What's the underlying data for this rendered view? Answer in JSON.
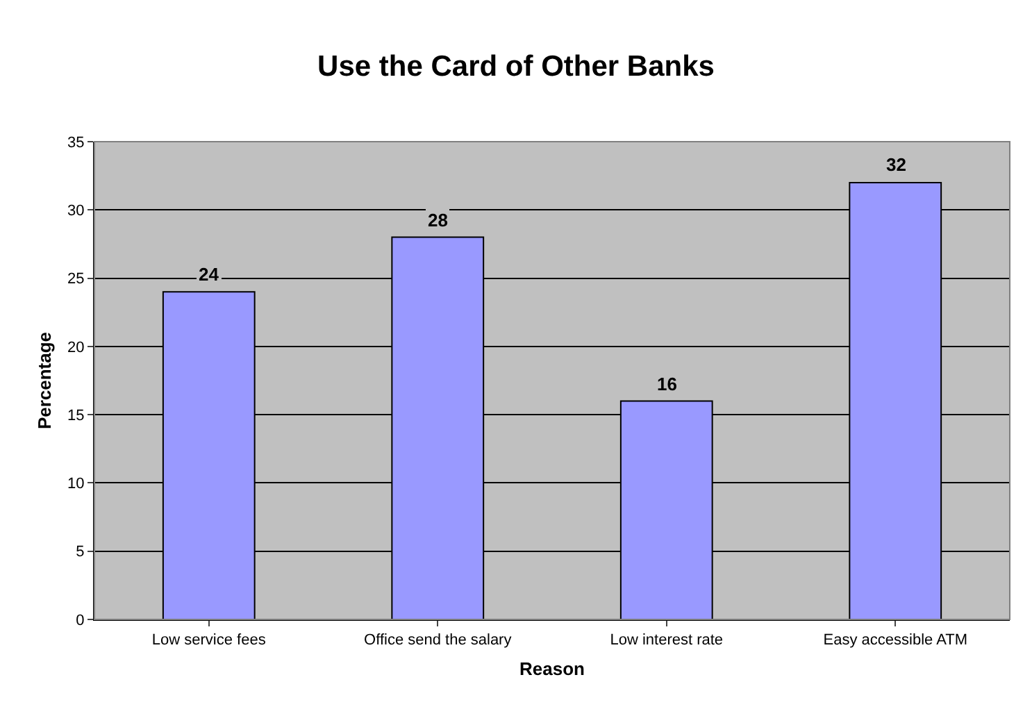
{
  "chart_data": {
    "type": "bar",
    "title": "Use the Card of Other Banks",
    "xlabel": "Reason",
    "ylabel": "Percentage",
    "categories": [
      "Low service fees",
      "Office send the salary",
      "Low interest rate",
      "Easy accessible ATM"
    ],
    "values": [
      24,
      28,
      16,
      32
    ],
    "color": "#9999ff",
    "ylim": [
      0,
      35
    ],
    "yticks": [
      0,
      5,
      10,
      15,
      20,
      25,
      30,
      35
    ],
    "grid": "y",
    "data_labels": true
  }
}
